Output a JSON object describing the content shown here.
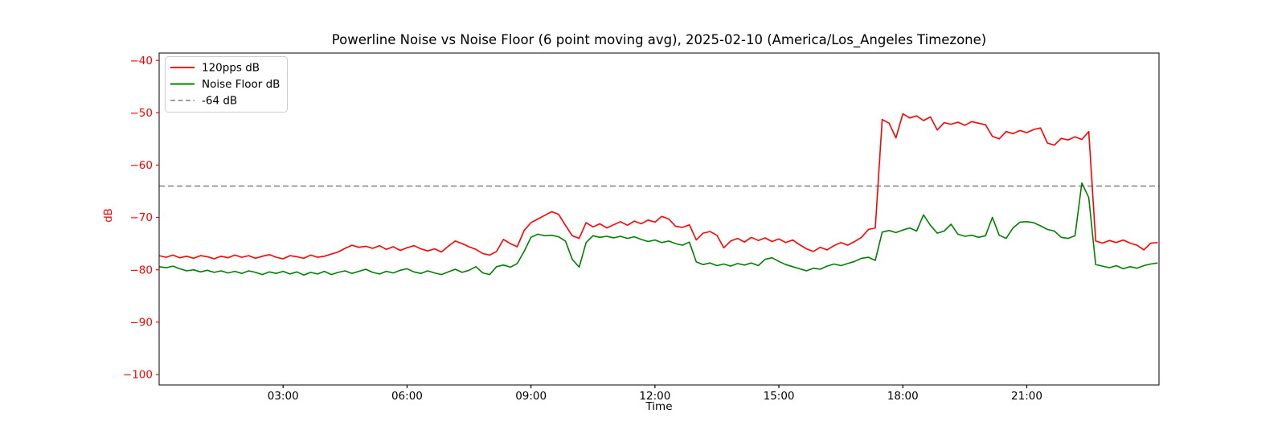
{
  "figure": {
    "background": "#ffffff",
    "plot_background": "#ffffff",
    "spine_color": "#000000"
  },
  "chart_data": {
    "type": "line",
    "title": "Powerline Noise vs Noise Floor (6 point moving avg), 2025-02-10 (America/Los_Angeles Timezone)",
    "xlabel": "Time",
    "ylabel": "dB",
    "grid": false,
    "legend_position": "upper-left",
    "x_unit": "hours",
    "x_start_hour": 0,
    "x_step_minutes": 10,
    "xlim": [
      0,
      24.2
    ],
    "ylim": [
      -102,
      -38.6
    ],
    "x_axis_color": "#000000",
    "y_axis_color": "#ff0000",
    "x_ticks": [
      {
        "value": 3,
        "label": "03:00"
      },
      {
        "value": 6,
        "label": "06:00"
      },
      {
        "value": 9,
        "label": "09:00"
      },
      {
        "value": 12,
        "label": "12:00"
      },
      {
        "value": 15,
        "label": "15:00"
      },
      {
        "value": 18,
        "label": "18:00"
      },
      {
        "value": 21,
        "label": "21:00"
      }
    ],
    "y_ticks": [
      {
        "value": -40,
        "label": "−40"
      },
      {
        "value": -50,
        "label": "−50"
      },
      {
        "value": -60,
        "label": "−60"
      },
      {
        "value": -70,
        "label": "−70"
      },
      {
        "value": -80,
        "label": "−80"
      },
      {
        "value": -90,
        "label": "−90"
      },
      {
        "value": -100,
        "label": "−100"
      }
    ],
    "threshold": {
      "value": -64,
      "label": "-64 dB",
      "color": "#808080",
      "style": "dashed"
    },
    "series": [
      {
        "name": "120pps dB",
        "color": "#ff0000",
        "values": [
          -77.3,
          -77.6,
          -77.2,
          -77.7,
          -77.4,
          -77.8,
          -77.3,
          -77.5,
          -77.9,
          -77.4,
          -77.7,
          -77.2,
          -77.6,
          -77.3,
          -77.8,
          -77.4,
          -77.1,
          -77.6,
          -77.9,
          -77.3,
          -77.5,
          -77.8,
          -77.2,
          -77.6,
          -77.4,
          -77.0,
          -76.6,
          -75.9,
          -75.3,
          -75.7,
          -75.5,
          -75.9,
          -75.4,
          -76.1,
          -75.6,
          -76.3,
          -75.8,
          -75.4,
          -76.0,
          -76.4,
          -76.0,
          -76.6,
          -75.5,
          -74.5,
          -75.0,
          -75.6,
          -76.1,
          -76.9,
          -77.2,
          -76.5,
          -74.2,
          -75.0,
          -75.6,
          -72.5,
          -71.0,
          -70.3,
          -69.6,
          -68.9,
          -69.4,
          -71.5,
          -73.5,
          -74.0,
          -71.0,
          -71.8,
          -71.2,
          -72.0,
          -71.4,
          -70.8,
          -71.5,
          -70.7,
          -71.2,
          -70.5,
          -70.9,
          -69.8,
          -70.3,
          -71.7,
          -71.9,
          -71.4,
          -74.3,
          -73.0,
          -72.7,
          -73.4,
          -75.8,
          -74.5,
          -74.0,
          -74.7,
          -73.8,
          -74.4,
          -73.9,
          -74.6,
          -74.1,
          -74.8,
          -74.3,
          -75.2,
          -76.0,
          -76.5,
          -75.7,
          -76.2,
          -75.4,
          -74.8,
          -75.3,
          -74.6,
          -73.8,
          -72.3,
          -72.0,
          -51.3,
          -52.0,
          -54.8,
          -50.2,
          -51.0,
          -50.6,
          -51.5,
          -50.8,
          -53.3,
          -51.9,
          -52.2,
          -51.8,
          -52.4,
          -51.7,
          -52.0,
          -52.3,
          -54.5,
          -55.0,
          -53.6,
          -54.0,
          -53.4,
          -53.8,
          -53.2,
          -52.9,
          -55.8,
          -56.2,
          -54.9,
          -55.2,
          -54.6,
          -55.1,
          -53.6,
          -74.5,
          -74.9,
          -74.4,
          -74.8,
          -74.3,
          -74.9,
          -75.3,
          -76.2,
          -74.9,
          -74.8
        ]
      },
      {
        "name": "Noise Floor dB",
        "color": "#008000",
        "values": [
          -79.4,
          -79.6,
          -79.3,
          -79.8,
          -80.2,
          -80.0,
          -80.4,
          -80.1,
          -80.5,
          -80.2,
          -80.6,
          -80.3,
          -80.7,
          -80.2,
          -80.5,
          -80.9,
          -80.4,
          -80.7,
          -80.3,
          -80.8,
          -80.4,
          -81.0,
          -80.5,
          -80.8,
          -80.3,
          -80.9,
          -80.5,
          -80.2,
          -80.7,
          -80.3,
          -79.9,
          -80.5,
          -80.8,
          -80.3,
          -80.6,
          -80.1,
          -79.8,
          -80.4,
          -80.7,
          -80.2,
          -80.6,
          -80.9,
          -80.4,
          -79.9,
          -80.5,
          -80.1,
          -79.4,
          -80.6,
          -80.9,
          -79.4,
          -79.1,
          -79.5,
          -78.8,
          -76.5,
          -73.8,
          -73.2,
          -73.5,
          -73.4,
          -73.7,
          -74.5,
          -78.0,
          -79.5,
          -74.8,
          -73.5,
          -73.8,
          -73.6,
          -73.9,
          -73.6,
          -74.0,
          -73.7,
          -74.2,
          -74.6,
          -74.3,
          -74.8,
          -74.5,
          -75.0,
          -75.3,
          -74.7,
          -78.5,
          -79.0,
          -78.7,
          -79.2,
          -78.9,
          -79.3,
          -78.8,
          -79.1,
          -78.7,
          -79.2,
          -78.0,
          -77.7,
          -78.4,
          -79.0,
          -79.4,
          -79.8,
          -80.2,
          -79.7,
          -79.9,
          -79.3,
          -78.9,
          -79.2,
          -78.8,
          -78.4,
          -77.8,
          -77.6,
          -78.2,
          -72.8,
          -72.5,
          -72.9,
          -72.4,
          -72.0,
          -72.6,
          -69.5,
          -71.5,
          -73.0,
          -72.6,
          -71.3,
          -73.2,
          -73.6,
          -73.4,
          -73.8,
          -73.5,
          -70.0,
          -73.4,
          -74.0,
          -72.0,
          -70.9,
          -70.8,
          -71.0,
          -71.6,
          -72.3,
          -72.6,
          -73.8,
          -74.0,
          -73.5,
          -63.4,
          -66.2,
          -79.0,
          -79.3,
          -79.6,
          -79.2,
          -79.8,
          -79.4,
          -79.7,
          -79.2,
          -78.9,
          -78.7
        ]
      }
    ]
  }
}
